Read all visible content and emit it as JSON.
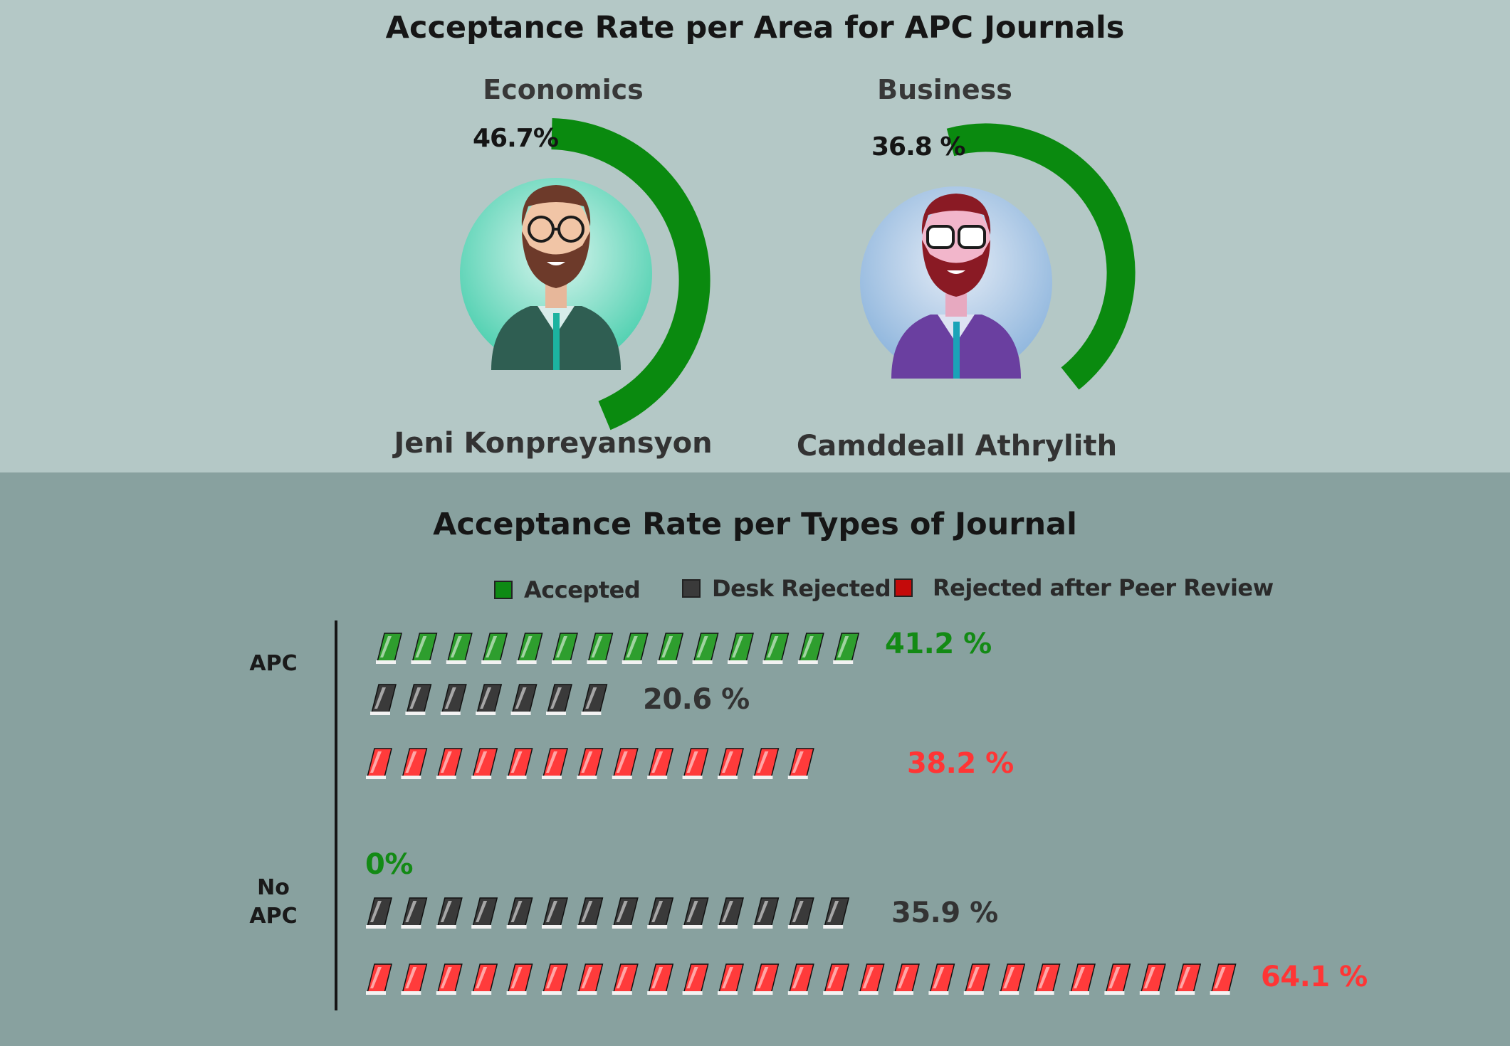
{
  "top_title": "Acceptance Rate per Area for APC Journals",
  "bottom_title": "Acceptance Rate per Types of Journal",
  "areas": [
    {
      "label": "Economics",
      "pct_text": "46.7%",
      "name": "Jeni Konpreyansyon"
    },
    {
      "label": "Business",
      "pct_text": "36.8 %",
      "name": "Camddeall Athrylith"
    }
  ],
  "legend": [
    {
      "label": "Accepted",
      "color": "#0e8a14"
    },
    {
      "label": "Desk Rejected",
      "color": "#3a3a3a"
    },
    {
      "label": "Rejected after Peer Review",
      "color": "#c40a0a"
    }
  ],
  "row_labels": {
    "apc": "APC",
    "no_apc_line1": "No",
    "no_apc_line2": "APC"
  },
  "value_labels": {
    "apc_accepted": "41.2 %",
    "apc_desk": "20.6 %",
    "apc_peer": "38.2 %",
    "noapc_accepted": "0%",
    "noapc_desk": "35.9 %",
    "noapc_peer": "64.1 %"
  },
  "chart_data": [
    {
      "type": "pie",
      "title": "Acceptance Rate per Area for APC Journals",
      "series": [
        {
          "name": "Economics",
          "values": [
            46.7
          ]
        },
        {
          "name": "Business",
          "values": [
            36.8
          ]
        }
      ]
    },
    {
      "type": "bar",
      "title": "Acceptance Rate per Types of Journal",
      "categories": [
        "APC",
        "No APC"
      ],
      "series": [
        {
          "name": "Accepted",
          "values": [
            41.2,
            0
          ],
          "icon_counts": [
            14,
            0
          ],
          "color": "#2e9e2e"
        },
        {
          "name": "Desk Rejected",
          "values": [
            20.6,
            35.9
          ],
          "icon_counts": [
            7,
            14
          ],
          "color": "#3a3a3a"
        },
        {
          "name": "Rejected after Peer Review",
          "values": [
            38.2,
            64.1
          ],
          "icon_counts": [
            13,
            25
          ],
          "color": "#ff3b3b"
        }
      ]
    }
  ]
}
